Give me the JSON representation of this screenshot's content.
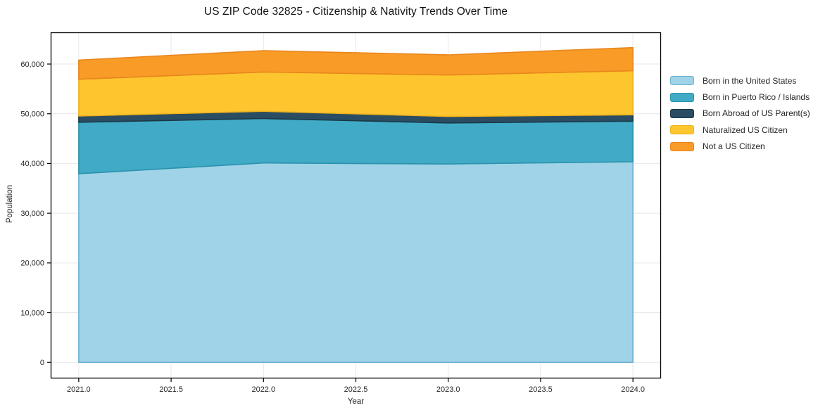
{
  "title": "US ZIP Code 32825 - Citizenship & Nativity Trends Over Time",
  "chart_data": {
    "type": "area",
    "stacked": true,
    "title": "US ZIP Code 32825 - Citizenship & Nativity Trends Over Time",
    "xlabel": "Year",
    "ylabel": "Population",
    "x": [
      2021,
      2022,
      2023,
      2024
    ],
    "series": [
      {
        "name": "Born in the United States",
        "color": "#a0d3e8",
        "edge": "#6fb0d2",
        "values": [
          37950,
          40100,
          39900,
          40350
        ]
      },
      {
        "name": "Born in Puerto Rico / Islands",
        "color": "#41abc7",
        "edge": "#2a92ad",
        "values": [
          10350,
          8950,
          8250,
          8150
        ]
      },
      {
        "name": "Born Abroad of US Parent(s)",
        "color": "#2a4d63",
        "edge": "#1c3847",
        "values": [
          1250,
          1450,
          1300,
          1300
        ]
      },
      {
        "name": "Naturalized US Citizen",
        "color": "#fdc62f",
        "edge": "#edb11d",
        "values": [
          7400,
          7900,
          8350,
          8850
        ]
      },
      {
        "name": "Not a US Citizen",
        "color": "#f89b27",
        "edge": "#e9861c",
        "values": [
          3850,
          4300,
          4050,
          4650
        ]
      }
    ],
    "stacked_totals": [
      60800,
      62700,
      61850,
      63300
    ],
    "xticks": {
      "values": [
        2021.0,
        2021.5,
        2022.0,
        2022.5,
        2023.0,
        2023.5,
        2024.0
      ],
      "labels": [
        "2021.0",
        "2021.5",
        "2022.0",
        "2022.5",
        "2023.0",
        "2023.5",
        "2024.0"
      ]
    },
    "yticks": {
      "values": [
        0,
        10000,
        20000,
        30000,
        40000,
        50000,
        60000
      ],
      "labels": [
        "0",
        "10,000",
        "20,000",
        "30,000",
        "40,000",
        "50,000",
        "60,000"
      ]
    },
    "xlim": [
      2020.85,
      2024.15
    ],
    "ylim": [
      -3150,
      66300
    ],
    "grid": true,
    "legend_position": "outside-right",
    "grid_color": "#e7e7e7",
    "spine_color": "#000000",
    "text_color": "#262626"
  }
}
